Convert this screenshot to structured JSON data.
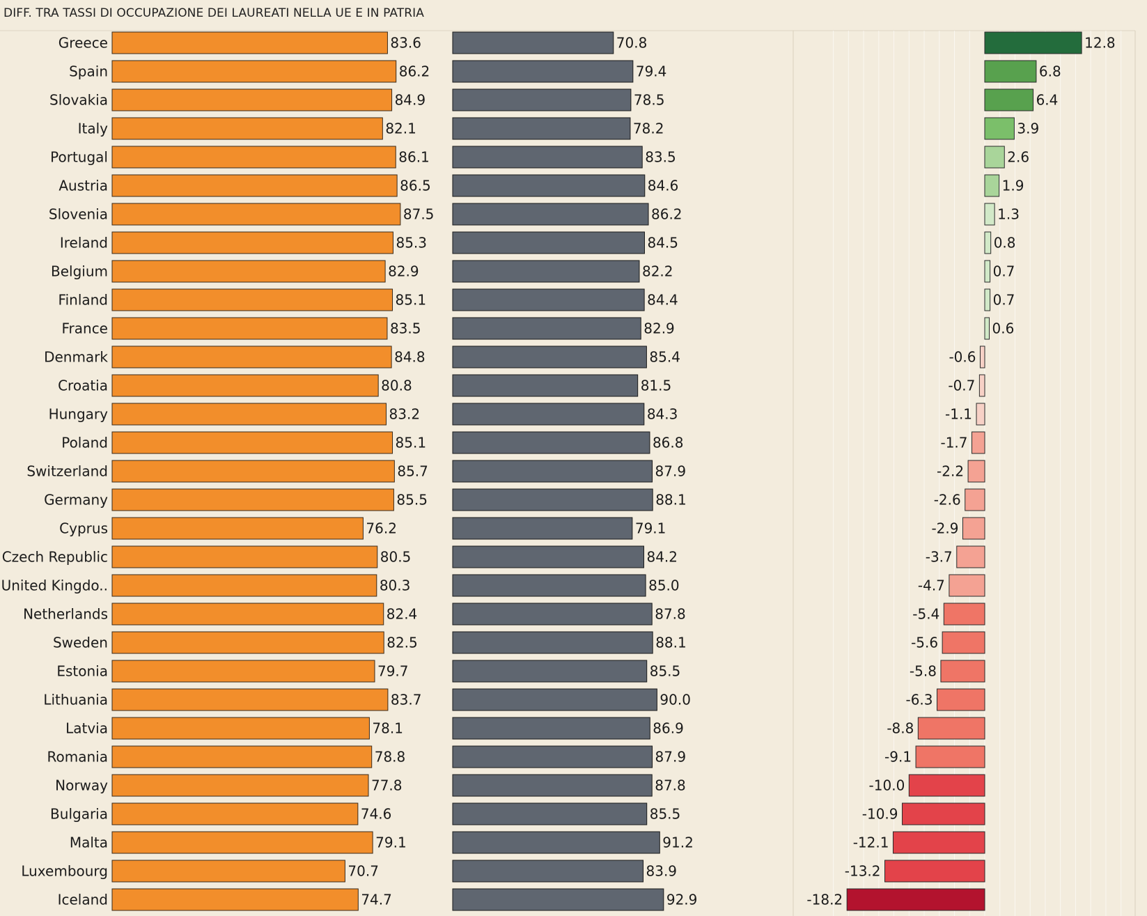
{
  "title": "DIFF. TRA TASSI DI OCCUPAZIONE DEI LAUREATI NELLA UE E IN PATRIA",
  "colors": {
    "background": "#f3ecdd",
    "eu_bar": "#f28e2b",
    "home_bar": "#5f6670",
    "positive_diff": [
      "#d2e9c8",
      "#a9d59a",
      "#7bbf6a",
      "#58a14e",
      "#236c3c"
    ],
    "negative_diff": [
      "#f7d1c6",
      "#f4a293",
      "#ef7566",
      "#e3434a",
      "#b3132e"
    ]
  },
  "chart_data": {
    "type": "bar",
    "title": "DIFF. TRA TASSI DI OCCUPAZIONE DEI LAUREATI NELLA UE E IN PATRIA",
    "categories": [
      "Greece",
      "Spain",
      "Slovakia",
      "Italy",
      "Portugal",
      "Austria",
      "Slovenia",
      "Ireland",
      "Belgium",
      "Finland",
      "France",
      "Denmark",
      "Croatia",
      "Hungary",
      "Poland",
      "Switzerland",
      "Germany",
      "Cyprus",
      "Czech Republic",
      "United Kingdo..",
      "Netherlands",
      "Sweden",
      "Estonia",
      "Lithuania",
      "Latvia",
      "Romania",
      "Norway",
      "Bulgaria",
      "Malta",
      "Luxembourg",
      "Iceland"
    ],
    "series": [
      {
        "values": [
          83.6,
          86.2,
          84.9,
          82.1,
          86.1,
          86.5,
          87.5,
          85.3,
          82.9,
          85.1,
          83.5,
          84.8,
          80.8,
          83.2,
          85.1,
          85.7,
          85.5,
          76.2,
          80.5,
          80.3,
          82.4,
          82.5,
          79.7,
          83.7,
          78.1,
          78.8,
          77.8,
          74.6,
          79.1,
          70.7,
          74.7
        ]
      },
      {
        "values": [
          70.8,
          79.4,
          78.5,
          78.2,
          83.5,
          84.6,
          86.2,
          84.5,
          82.2,
          84.4,
          82.9,
          85.4,
          81.5,
          84.3,
          86.8,
          87.9,
          88.1,
          79.1,
          84.2,
          85.0,
          87.8,
          88.1,
          85.5,
          90.0,
          86.9,
          87.9,
          87.8,
          85.5,
          91.2,
          83.9,
          92.9
        ]
      },
      {
        "values": [
          12.8,
          6.8,
          6.4,
          3.9,
          2.6,
          1.9,
          1.3,
          0.8,
          0.7,
          0.7,
          0.6,
          -0.6,
          -0.7,
          -1.1,
          -1.7,
          -2.2,
          -2.6,
          -2.9,
          -3.7,
          -4.7,
          -5.4,
          -5.6,
          -5.8,
          -6.3,
          -8.8,
          -9.1,
          -10.0,
          -10.9,
          -12.1,
          -13.2,
          -18.2
        ]
      }
    ],
    "value_labels": {
      "s0": [
        "83.6",
        "86.2",
        "84.9",
        "82.1",
        "86.1",
        "86.5",
        "87.5",
        "85.3",
        "82.9",
        "85.1",
        "83.5",
        "84.8",
        "80.8",
        "83.2",
        "85.1",
        "85.7",
        "85.5",
        "76.2",
        "80.5",
        "80.3",
        "82.4",
        "82.5",
        "79.7",
        "83.7",
        "78.1",
        "78.8",
        "77.8",
        "74.6",
        "79.1",
        "70.7",
        "74.7"
      ],
      "s1": [
        "70.8",
        "79.4",
        "78.5",
        "78.2",
        "83.5",
        "84.6",
        "86.2",
        "84.5",
        "82.2",
        "84.4",
        "82.9",
        "85.4",
        "81.5",
        "84.3",
        "86.8",
        "87.9",
        "88.1",
        "79.1",
        "84.2",
        "85.0",
        "87.8",
        "88.1",
        "85.5",
        "90.0",
        "86.9",
        "87.9",
        "87.8",
        "85.5",
        "91.2",
        "83.9",
        "92.9"
      ],
      "s2": [
        "12.8",
        "6.8",
        "6.4",
        "3.9",
        "2.6",
        "1.9",
        "1.3",
        "0.8",
        "0.7",
        "0.7",
        "0.6",
        "-0.6",
        "-0.7",
        "-1.1",
        "-1.7",
        "-2.2",
        "-2.6",
        "-2.9",
        "-3.7",
        "-4.7",
        "-5.4",
        "-5.6",
        "-5.8",
        "-6.3",
        "-8.8",
        "-9.1",
        "-10.0",
        "-10.9",
        "-12.1",
        "-13.2",
        "-18.2"
      ]
    },
    "legend": "none",
    "grid": "vertical gridlines in difference panel"
  }
}
